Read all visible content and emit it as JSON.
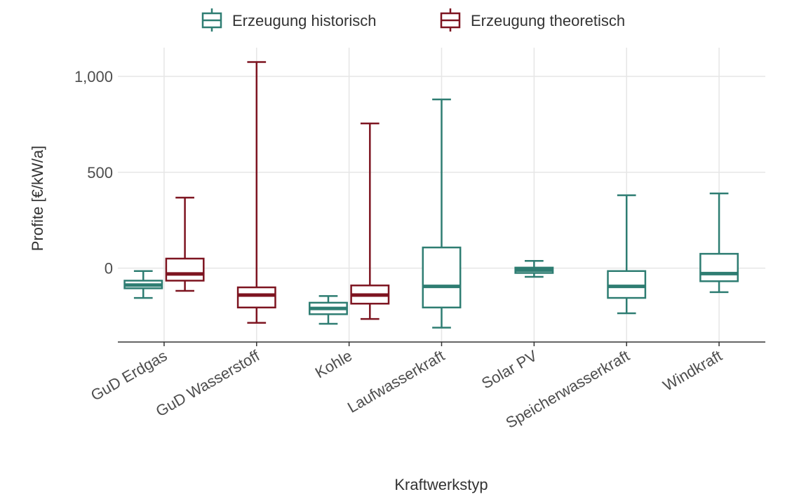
{
  "chart_data": {
    "type": "boxplot",
    "xlabel": "Kraftwerkstyp",
    "ylabel": "Profite [€/kW/a]",
    "ylim": [
      -385,
      1150
    ],
    "yticks": [
      0,
      500,
      1000
    ],
    "ytick_labels": [
      "0",
      "500",
      "1,000"
    ],
    "grid": true,
    "legend_position": "top",
    "categories": [
      "GuD Erdgas",
      "GuD Wasserstoff",
      "Kohle",
      "Laufwasserkraft",
      "Solar PV",
      "Speicherwasserkraft",
      "Windkraft"
    ],
    "series": [
      {
        "name": "Erzeugung historisch",
        "color": "#2e7d72",
        "boxes": [
          {
            "category": "GuD Erdgas",
            "min": -155,
            "q1": -105,
            "median": -88,
            "q3": -65,
            "max": -15
          },
          null,
          {
            "category": "Kohle",
            "min": -290,
            "q1": -240,
            "median": -210,
            "q3": -180,
            "max": -145
          },
          {
            "category": "Laufwasserkraft",
            "min": -310,
            "q1": -205,
            "median": -95,
            "q3": 108,
            "max": 880
          },
          {
            "category": "Solar PV",
            "min": -45,
            "q1": -25,
            "median": -10,
            "q3": 3,
            "max": 38
          },
          {
            "category": "Speicherwasserkraft",
            "min": -235,
            "q1": -155,
            "median": -95,
            "q3": -15,
            "max": 380
          },
          {
            "category": "Windkraft",
            "min": -125,
            "q1": -68,
            "median": -28,
            "q3": 75,
            "max": 390
          }
        ]
      },
      {
        "name": "Erzeugung theoretisch",
        "color": "#7d1420",
        "boxes": [
          {
            "category": "GuD Erdgas",
            "min": -118,
            "q1": -65,
            "median": -30,
            "q3": 50,
            "max": 368
          },
          {
            "category": "GuD Wasserstoff",
            "min": -285,
            "q1": -205,
            "median": -140,
            "q3": -100,
            "max": 1075
          },
          {
            "category": "Kohle",
            "min": -265,
            "q1": -185,
            "median": -140,
            "q3": -90,
            "max": 755
          },
          null,
          null,
          null,
          null
        ]
      }
    ]
  }
}
